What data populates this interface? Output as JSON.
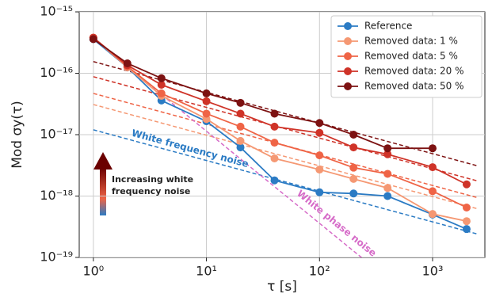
{
  "chart_data": {
    "type": "line",
    "x_label": "τ [s]",
    "y_label": "Mod σy(τ)",
    "log_x": true,
    "log_y": true,
    "grid": true,
    "legend": "upper right",
    "xlim": [
      0.75,
      2900
    ],
    "ylim": [
      1e-19,
      1e-15
    ],
    "xticks": [
      {
        "value": 1,
        "label": "10⁰"
      },
      {
        "value": 10,
        "label": "10¹"
      },
      {
        "value": 100,
        "label": "10²"
      },
      {
        "value": 1000,
        "label": "10³"
      }
    ],
    "yticks": [
      {
        "value": 1e-19,
        "label": "10⁻¹⁹"
      },
      {
        "value": 1e-18,
        "label": "10⁻¹⁸"
      },
      {
        "value": 1e-17,
        "label": "10⁻¹⁷"
      },
      {
        "value": 1e-16,
        "label": "10⁻¹⁶"
      },
      {
        "value": 1e-15,
        "label": "10⁻¹⁵"
      }
    ],
    "x": [
      1,
      2,
      4,
      10,
      20,
      40,
      100,
      200,
      400,
      1000,
      2000
    ],
    "series": [
      {
        "name": "Reference",
        "color": "#2b7bc4",
        "values": [
          3.6e-16,
          1.25e-16,
          3.6e-17,
          1.65e-17,
          6.2e-18,
          1.8e-18,
          1.15e-18,
          1.1e-18,
          1e-18,
          5e-19,
          2.9e-19
        ]
      },
      {
        "name": "Removed data: 1 %",
        "color": "#f59873",
        "values": [
          3.8e-16,
          1.25e-16,
          4.3e-17,
          1.8e-17,
          7.9e-18,
          4.1e-18,
          2.7e-18,
          1.9e-18,
          1.35e-18,
          5.1e-19,
          3.9e-19
        ]
      },
      {
        "name": "Removed data: 5 %",
        "color": "#ef6446",
        "values": [
          3.8e-16,
          1.3e-16,
          4.7e-17,
          2.2e-17,
          1.35e-17,
          7.4e-18,
          4.6e-18,
          2.9e-18,
          2.3e-18,
          1.2e-18,
          6.5e-19
        ]
      },
      {
        "name": "Removed data: 20 %",
        "color": "#cf3328",
        "values": [
          3.8e-16,
          1.35e-16,
          6.5e-17,
          3.5e-17,
          2.2e-17,
          1.35e-17,
          1.07e-17,
          6.2e-18,
          4.8e-18,
          2.95e-18,
          1.55e-18
        ]
      },
      {
        "name": "Removed data: 50 %",
        "color": "#7d1212",
        "values": [
          3.6e-16,
          1.45e-16,
          8.3e-17,
          4.7e-17,
          3.3e-17,
          2.2e-17,
          1.55e-17,
          1e-17,
          6e-18,
          6e-18,
          null
        ]
      }
    ],
    "fit_lines": [
      {
        "color": "#2b7bc4",
        "x": [
          1,
          2500
        ],
        "values": [
          1.2e-17,
          2.4e-19
        ],
        "label": "White frequency noise"
      },
      {
        "color": "#f59873",
        "x": [
          1,
          2500
        ],
        "values": [
          3.1e-17,
          6.2e-19
        ]
      },
      {
        "color": "#ef6446",
        "x": [
          1,
          2500
        ],
        "values": [
          4.7e-17,
          9.4e-19
        ]
      },
      {
        "color": "#cf3328",
        "x": [
          1,
          2500
        ],
        "values": [
          8.8e-17,
          1.76e-18
        ]
      },
      {
        "color": "#7d1212",
        "x": [
          1,
          2500
        ],
        "values": [
          1.55e-16,
          3.1e-18
        ]
      },
      {
        "color": "#d66bc8",
        "x": [
          1,
          250
        ],
        "values": [
          3.6e-16,
          9.1e-20
        ],
        "label": "White phase noise"
      }
    ],
    "arrow_text": [
      "Increasing white",
      "frequency noise"
    ]
  }
}
